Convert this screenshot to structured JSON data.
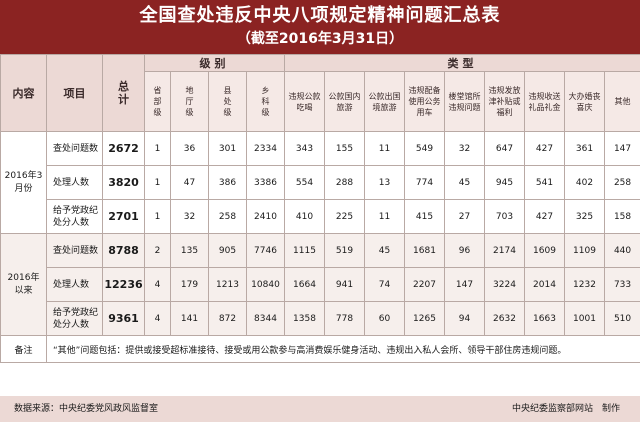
{
  "title": "全国查处违反中央八项规定精神问题汇总表",
  "subtitle": "（截至2016年3月31日）",
  "header": {
    "content": "内容",
    "item": "项目",
    "total": "总计",
    "level_group": "级别",
    "type_group": "类型",
    "levels": [
      "省部级",
      "地厅级",
      "县处级",
      "乡科级"
    ],
    "types": [
      "违规公款吃喝",
      "公款国内旅游",
      "公款出国境旅游",
      "违规配备使用公务用车",
      "楼堂馆所违规问题",
      "违规发放津补贴或福利",
      "违规收送礼品礼金",
      "大办婚丧喜庆",
      "其他"
    ]
  },
  "sections": [
    {
      "period": "2016年3月份",
      "rows": [
        {
          "item": "查处问题数",
          "total": "2672",
          "levels": [
            "1",
            "36",
            "301",
            "2334"
          ],
          "types": [
            "343",
            "155",
            "11",
            "549",
            "32",
            "647",
            "427",
            "361",
            "147"
          ]
        },
        {
          "item": "处理人数",
          "total": "3820",
          "levels": [
            "1",
            "47",
            "386",
            "3386"
          ],
          "types": [
            "554",
            "288",
            "13",
            "774",
            "45",
            "945",
            "541",
            "402",
            "258"
          ]
        },
        {
          "item": "给予党政纪处分人数",
          "total": "2701",
          "levels": [
            "1",
            "32",
            "258",
            "2410"
          ],
          "types": [
            "410",
            "225",
            "11",
            "415",
            "27",
            "703",
            "427",
            "325",
            "158"
          ]
        }
      ]
    },
    {
      "period": "2016年以来",
      "rows": [
        {
          "item": "查处问题数",
          "total": "8788",
          "levels": [
            "2",
            "135",
            "905",
            "7746"
          ],
          "types": [
            "1115",
            "519",
            "45",
            "1681",
            "96",
            "2174",
            "1609",
            "1109",
            "440"
          ]
        },
        {
          "item": "处理人数",
          "total": "12236",
          "levels": [
            "4",
            "179",
            "1213",
            "10840"
          ],
          "types": [
            "1664",
            "941",
            "74",
            "2207",
            "147",
            "3224",
            "2014",
            "1232",
            "733"
          ]
        },
        {
          "item": "给予党政纪处分人数",
          "total": "9361",
          "levels": [
            "4",
            "141",
            "872",
            "8344"
          ],
          "types": [
            "1358",
            "778",
            "60",
            "1265",
            "94",
            "2632",
            "1663",
            "1001",
            "510"
          ]
        }
      ]
    }
  ],
  "note": {
    "label": "备注",
    "text": "“其他”问题包括：提供或接受超标准接待、接受或用公款参与高消费娱乐健身活动、违规出入私人会所、领导干部住房违规问题。"
  },
  "footer": {
    "source": "数据来源：中央纪委党风政风监督室",
    "maker": "中央纪委监察部网站　制作"
  },
  "colors": {
    "header_bg": "#8b2322",
    "header_text": "#ffffff",
    "band": "#ecd9d5",
    "row_alt": "#f6efec"
  }
}
